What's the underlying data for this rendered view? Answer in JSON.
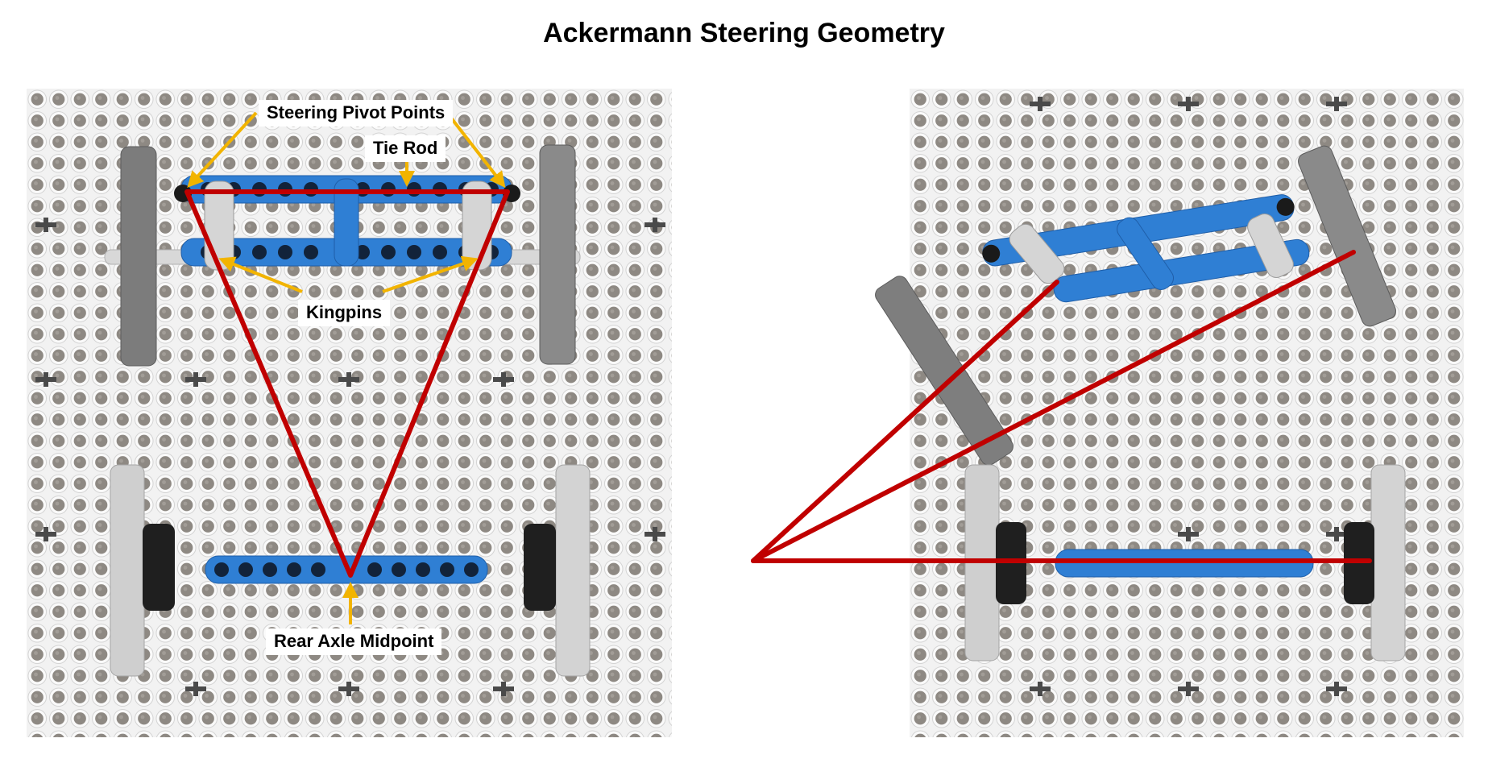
{
  "title": "Ackermann Steering Geometry",
  "labels": {
    "steering_pivot_points": "Steering Pivot Points",
    "tie_rod": "Tie Rod",
    "kingpins": "Kingpins",
    "rear_axle_midpoint": "Rear Axle Midpoint"
  },
  "colors": {
    "geometry_line": "#c00000",
    "annotation_arrow": "#f2b400",
    "beam_blue": "#2f7fd4",
    "board_white": "#f4f4f4",
    "board_hole": "#8f8a84",
    "liftarm_dark": "#7e7e7e",
    "liftarm_light": "#d2d2d2"
  }
}
